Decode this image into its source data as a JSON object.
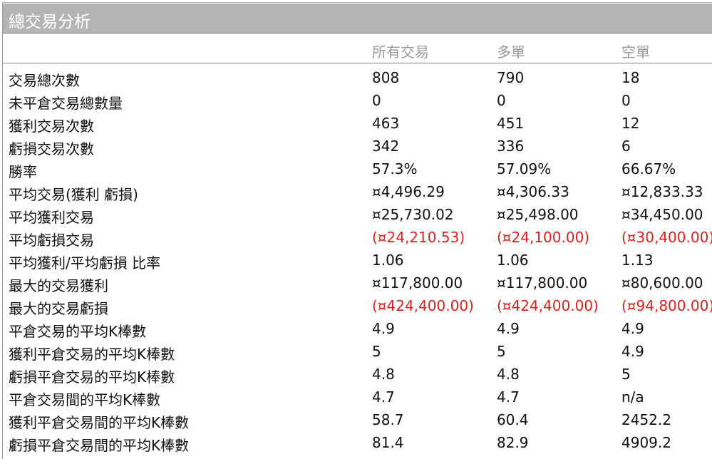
{
  "title": "總交易分析",
  "columns": [
    "",
    "所有交易",
    "多單",
    "空單"
  ],
  "colors": {
    "negative": "#e0201c",
    "titlebar": "#b4b4b4",
    "header_text": "#999999"
  },
  "rows": [
    {
      "label": "交易總次數",
      "values": [
        "808",
        "790",
        "18"
      ],
      "negative": false
    },
    {
      "label": "未平倉交易總數量",
      "values": [
        "0",
        "0",
        "0"
      ],
      "negative": false
    },
    {
      "label": "獲利交易次數",
      "values": [
        "463",
        "451",
        "12"
      ],
      "negative": false
    },
    {
      "label": "虧損交易次數",
      "values": [
        "342",
        "336",
        "6"
      ],
      "negative": false
    },
    {
      "label": "勝率",
      "values": [
        "57.3%",
        "57.09%",
        "66.67%"
      ],
      "negative": false
    },
    {
      "label": "平均交易(獲利  虧損)",
      "values": [
        "¤4,496.29",
        "¤4,306.33",
        "¤12,833.33"
      ],
      "negative": false
    },
    {
      "label": "平均獲利交易",
      "values": [
        "¤25,730.02",
        "¤25,498.00",
        "¤34,450.00"
      ],
      "negative": false
    },
    {
      "label": "平均虧損交易",
      "values": [
        "(¤24,210.53)",
        "(¤24,100.00)",
        "(¤30,400.00)"
      ],
      "negative": true
    },
    {
      "label": "平均獲利/平均虧損  比率",
      "values": [
        "1.06",
        "1.06",
        "1.13"
      ],
      "negative": false
    },
    {
      "label": "最大的交易獲利",
      "values": [
        "¤117,800.00",
        "¤117,800.00",
        "¤80,600.00"
      ],
      "negative": false
    },
    {
      "label": "最大的交易虧損",
      "values": [
        "(¤424,400.00)",
        "(¤424,400.00)",
        "(¤94,800.00)"
      ],
      "negative": true
    },
    {
      "label": "平倉交易的平均K棒數",
      "values": [
        "4.9",
        "4.9",
        "4.9"
      ],
      "negative": false
    },
    {
      "label": "獲利平倉交易的平均K棒數",
      "values": [
        "5",
        "5",
        "4.9"
      ],
      "negative": false
    },
    {
      "label": "虧損平倉交易的平均K棒數",
      "values": [
        "4.8",
        "4.8",
        "5"
      ],
      "negative": false
    },
    {
      "label": "平倉交易間的平均K棒數",
      "values": [
        "4.7",
        "4.7",
        "n/a"
      ],
      "negative": false
    },
    {
      "label": "獲利平倉交易間的平均K棒數",
      "values": [
        "58.7",
        "60.4",
        "2452.2"
      ],
      "negative": false
    },
    {
      "label": "虧損平倉交易間的平均K棒數",
      "values": [
        "81.4",
        "82.9",
        "4909.2"
      ],
      "negative": false
    }
  ]
}
